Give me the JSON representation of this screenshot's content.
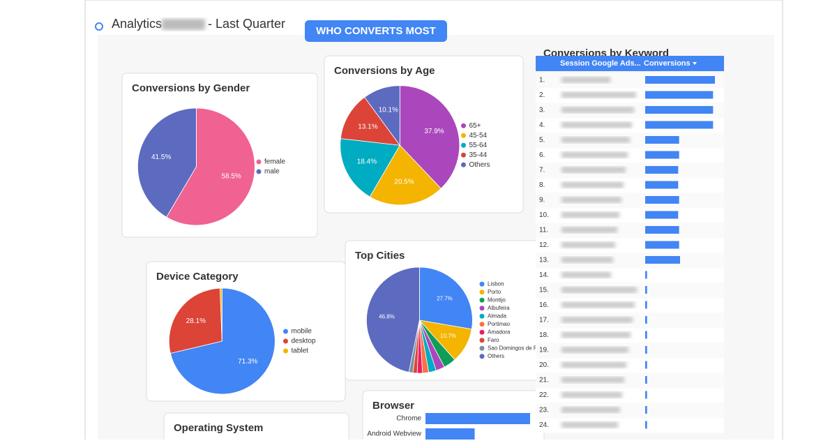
{
  "header": {
    "title": "Analytics",
    "subtitle": "- Last Quarter",
    "banner": "WHO CONVERTS MOST"
  },
  "chart_data": [
    {
      "type": "pie",
      "title": "Conversions by Gender",
      "categories": [
        "female",
        "male"
      ],
      "values": [
        58.5,
        41.5
      ],
      "value_labels": [
        "58.5%",
        "41.5%"
      ],
      "colors": [
        "#f06292",
        "#5c6bc0"
      ]
    },
    {
      "type": "pie",
      "title": "Conversions by Age",
      "categories": [
        "65+",
        "45-54",
        "55-64",
        "35-44",
        "Others"
      ],
      "values": [
        37.9,
        20.5,
        18.4,
        13.1,
        10.1
      ],
      "value_labels": [
        "37.9%",
        "20.5%",
        "18.4%",
        "13.1%",
        "10.1%"
      ],
      "colors": [
        "#ab47bc",
        "#f4b400",
        "#00acc1",
        "#db4437",
        "#5c6bc0"
      ]
    },
    {
      "type": "pie",
      "title": "Device Category",
      "categories": [
        "mobile",
        "desktop",
        "tablet"
      ],
      "values": [
        71.3,
        28.1,
        0.6
      ],
      "value_labels": [
        "71.3%",
        "28.1%",
        null
      ],
      "colors": [
        "#4285f4",
        "#db4437",
        "#f4b400"
      ]
    },
    {
      "type": "pie",
      "title": "Top Cities",
      "categories": [
        "Lisbon",
        "Porto",
        "Montijo",
        "Albufeira",
        "Almada",
        "Portimao",
        "Amadora",
        "Faro",
        "Sao Domingos de Rana",
        "Others"
      ],
      "values": [
        27.7,
        10.7,
        3.8,
        2.7,
        2.3,
        1.9,
        1.6,
        1.3,
        1.2,
        46.8
      ],
      "value_labels": [
        "27.7%",
        "10.7%",
        null,
        null,
        null,
        null,
        null,
        null,
        null,
        "46.8%"
      ],
      "colors": [
        "#4285f4",
        "#f4b400",
        "#0f9d58",
        "#ab47bc",
        "#00acc1",
        "#ff7043",
        "#e91e63",
        "#db4437",
        "#78909c",
        "#5c6bc0"
      ]
    },
    {
      "type": "bar",
      "title": "Operating System"
    },
    {
      "type": "bar",
      "title": "Browser",
      "categories": [
        "Chrome",
        "Android Webview"
      ],
      "values": [
        100,
        47
      ],
      "color": "#4285f4"
    },
    {
      "type": "table-bar",
      "title": "Conversions by Keyword",
      "columns": [
        "Session Google Ads...",
        "Conversions"
      ],
      "categories": [
        "1.",
        "2.",
        "3.",
        "4.",
        "5.",
        "6.",
        "7.",
        "8.",
        "9.",
        "10.",
        "11.",
        "12.",
        "13.",
        "14.",
        "15.",
        "16.",
        "17.",
        "18.",
        "19.",
        "20.",
        "21.",
        "22.",
        "23.",
        "24."
      ],
      "values": [
        74,
        72,
        72,
        72,
        36,
        36,
        35,
        35,
        36,
        35,
        36,
        36,
        37,
        2,
        2,
        2,
        2,
        2,
        2,
        2,
        2,
        2,
        2,
        2
      ],
      "color": "#4285f4"
    }
  ]
}
